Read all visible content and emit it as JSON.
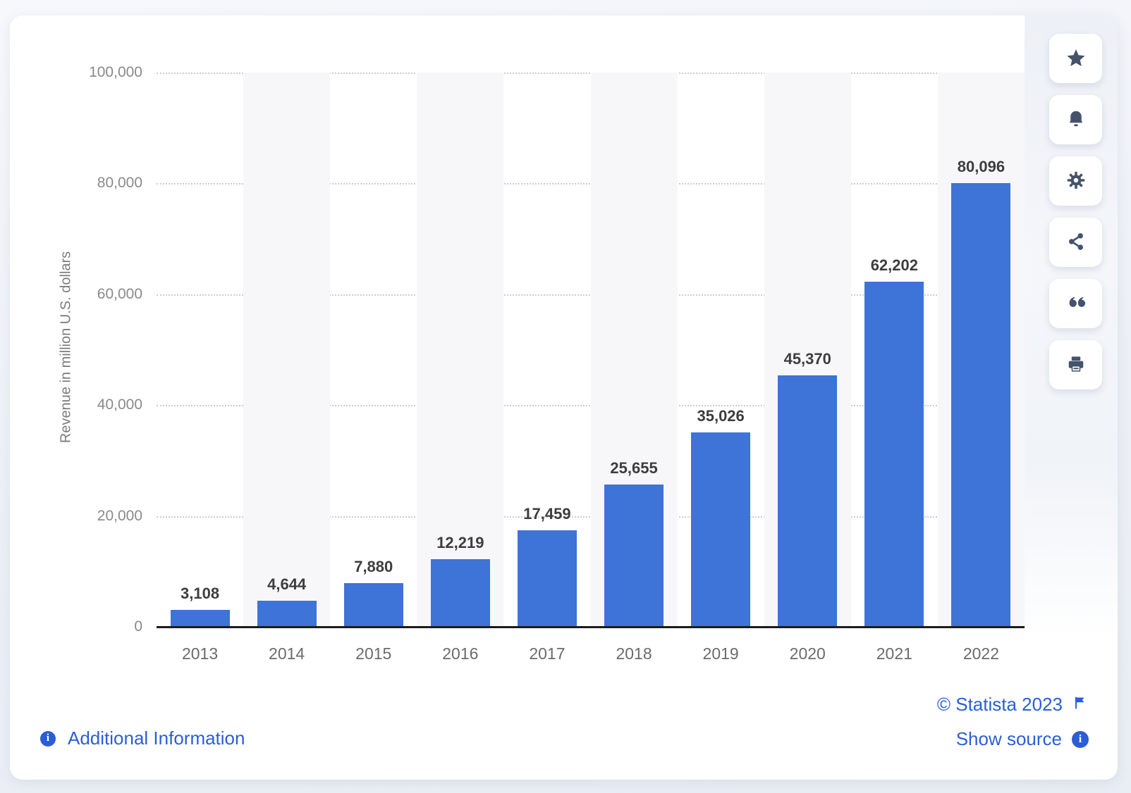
{
  "chart_data": {
    "type": "bar",
    "title": "",
    "categories": [
      "2013",
      "2014",
      "2015",
      "2016",
      "2017",
      "2018",
      "2019",
      "2020",
      "2021",
      "2022"
    ],
    "values": [
      3108,
      4644,
      7880,
      12219,
      17459,
      25655,
      35026,
      45370,
      62202,
      80096
    ],
    "value_labels": [
      "3,108",
      "4,644",
      "7,880",
      "12,219",
      "17,459",
      "25,655",
      "35,026",
      "45,370",
      "62,202",
      "80,096"
    ],
    "xlabel": "",
    "ylabel": "Revenue in million U.S. dollars",
    "ylim": [
      0,
      100000
    ],
    "yticks": [
      {
        "v": 0,
        "label": "0"
      },
      {
        "v": 20000,
        "label": "20,000"
      },
      {
        "v": 40000,
        "label": "40,000"
      },
      {
        "v": 60000,
        "label": "60,000"
      },
      {
        "v": 80000,
        "label": "80,000"
      },
      {
        "v": 100000,
        "label": "100,000"
      }
    ],
    "grid": "horizontal-dotted",
    "legend": "none",
    "bar_color": "#3e73d7",
    "band_color": "#f7f7f9",
    "banded_columns": [
      1,
      3,
      5,
      7,
      9
    ]
  },
  "toolbar": {
    "items": [
      {
        "icon": "star-icon"
      },
      {
        "icon": "bell-icon"
      },
      {
        "icon": "gear-icon"
      },
      {
        "icon": "share-icon"
      },
      {
        "icon": "quote-icon"
      },
      {
        "icon": "print-icon"
      }
    ],
    "icon_color": "#44526b"
  },
  "footer": {
    "additional_info_label": "Additional Information",
    "copyright": "© Statista 2023",
    "show_source_label": "Show source"
  },
  "colors": {
    "accent_blue": "#2b5ed6",
    "bar_blue": "#3e73d7",
    "axis_text": "#8a8a8a"
  }
}
